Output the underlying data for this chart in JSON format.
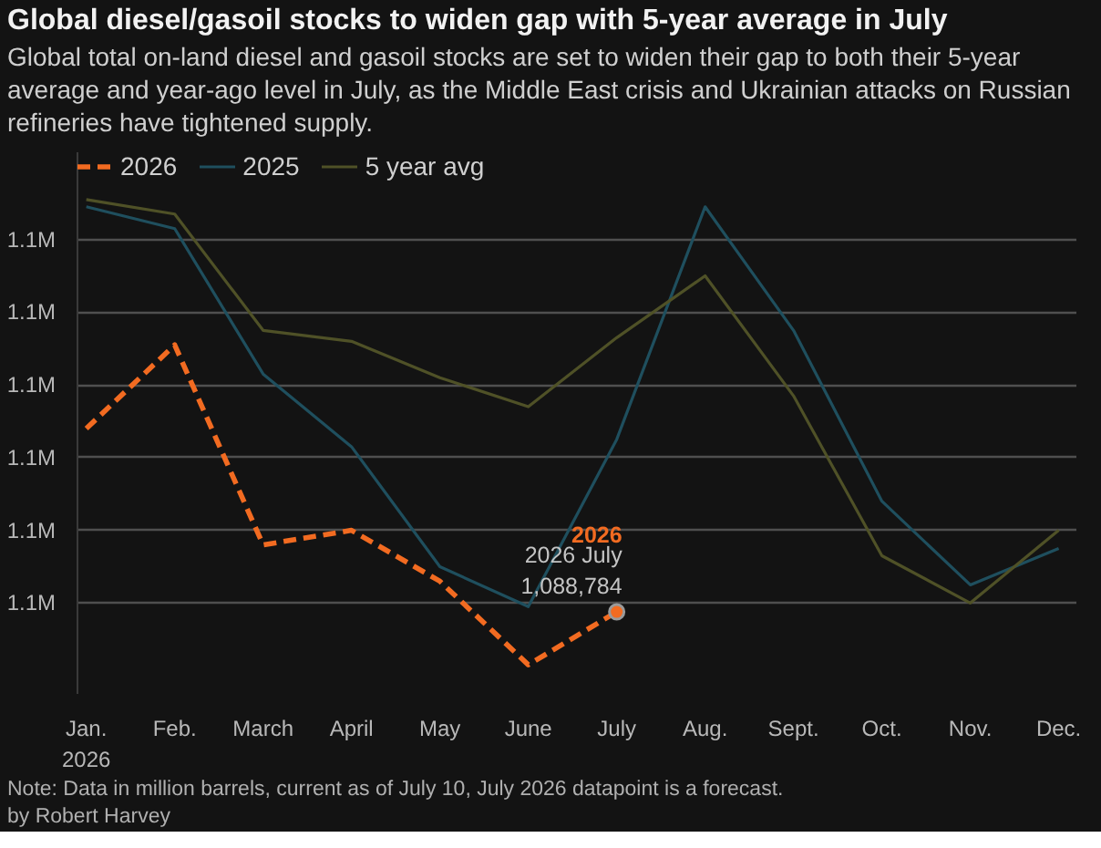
{
  "chart_data": {
    "type": "line",
    "title": "Global diesel/gasoil stocks to widen gap with 5-year average in July",
    "subtitle": "Global total on-land diesel and gasoil stocks are set to widen their gap to both their 5-year average and year-ago level in July, as the Middle East crisis and Ukrainian attacks on Russian refineries have tightened supply.",
    "categories": [
      "Jan.\n2026",
      "Feb.",
      "March",
      "April",
      "May",
      "June",
      "July",
      "Aug.",
      "Sept.",
      "Oct.",
      "Nov.",
      "Dec."
    ],
    "series": [
      {
        "name": "2026",
        "color": "#f26b21",
        "line_style": "dashed",
        "values": [
          1114000,
          1125500,
          1098000,
          1100000,
          1093000,
          1081500,
          1088784,
          null,
          null,
          null,
          null,
          null
        ],
        "value_labels": [
          null,
          null,
          null,
          null,
          null,
          null,
          "1,088,784",
          null,
          null,
          null,
          null,
          null
        ]
      },
      {
        "name": "2025",
        "color": "#1f4f5e",
        "values": [
          1144500,
          1141500,
          1121500,
          1111500,
          1095000,
          1089500,
          1112500,
          1144500,
          1127500,
          1104000,
          1092500,
          1097500
        ]
      },
      {
        "name": "5 year avg",
        "color": "#4f5127",
        "values": [
          1145500,
          1143500,
          1127500,
          1126000,
          1121000,
          1117000,
          1126500,
          1135000,
          1118500,
          1096500,
          1090000,
          1100000
        ]
      }
    ],
    "ylim": [
      1077500,
      1152000
    ],
    "yticks": [
      {
        "value": 1090000,
        "label": "1.1M"
      },
      {
        "value": 1100000,
        "label": "1.1M"
      },
      {
        "value": 1110000,
        "label": "1.1M"
      },
      {
        "value": 1120000,
        "label": "1.1M"
      },
      {
        "value": 1130000,
        "label": "1.1M"
      },
      {
        "value": 1140000,
        "label": "1.1M"
      }
    ],
    "grid": "y",
    "legend": "top left",
    "annotations": [
      {
        "text": "2026 July",
        "x": "July",
        "y": 1088784
      },
      "Note: Data in million barrels, current as of July 10, July 2026 datapoint is a forecast.",
      "by Robert Harvey"
    ]
  }
}
